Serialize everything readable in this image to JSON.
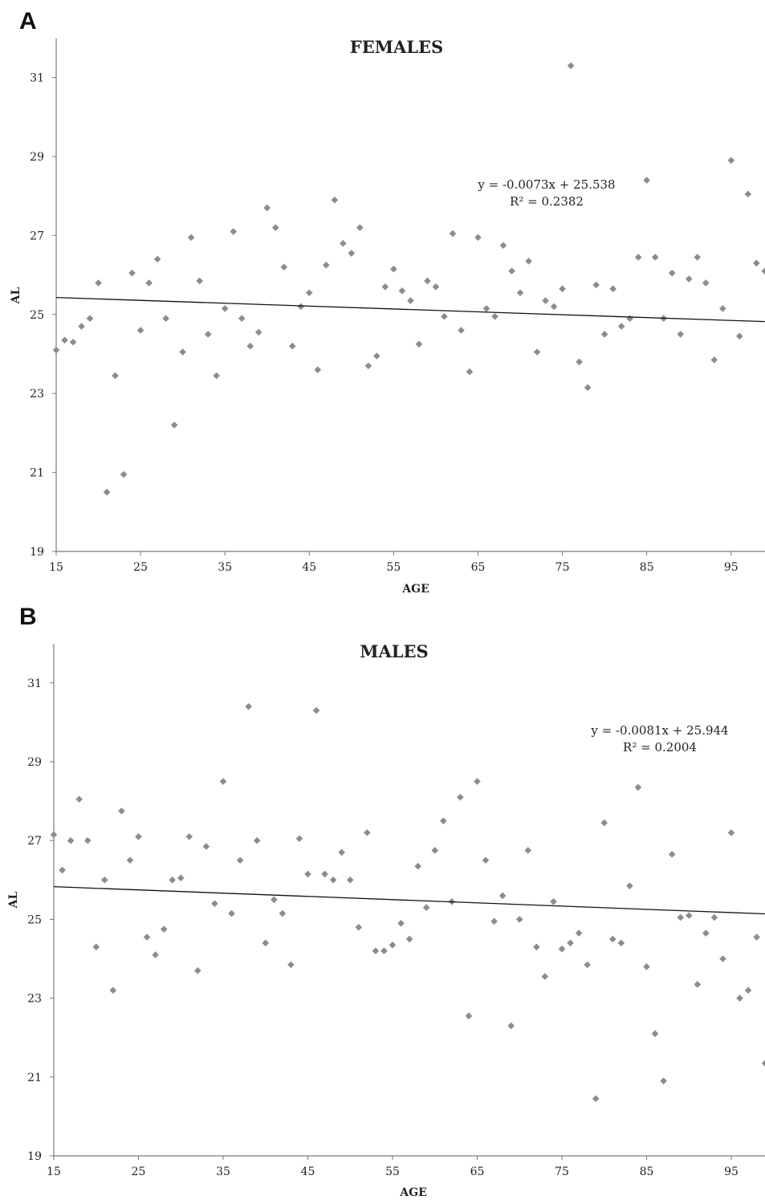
{
  "chart_data": [
    {
      "panel": "A",
      "type": "scatter",
      "title": "FEMALES",
      "xlabel": "AGE",
      "ylabel": "AL",
      "xlim": [
        15,
        99
      ],
      "ylim": [
        19,
        32
      ],
      "xticks": [
        15,
        25,
        35,
        45,
        55,
        65,
        75,
        85,
        95
      ],
      "yticks": [
        19,
        21,
        23,
        25,
        27,
        29,
        31
      ],
      "grid": false,
      "trendline": {
        "equation": "y = -0.0073x + 25.538",
        "r2_label": "R² = 0.2382",
        "y_at_xmin": 25.43,
        "y_at_xmax": 24.82
      },
      "points": [
        [
          15,
          24.1
        ],
        [
          16,
          24.35
        ],
        [
          17,
          24.3
        ],
        [
          18,
          24.7
        ],
        [
          19,
          24.9
        ],
        [
          20,
          25.8
        ],
        [
          21,
          20.5
        ],
        [
          22,
          23.45
        ],
        [
          23,
          20.95
        ],
        [
          24,
          26.05
        ],
        [
          25,
          24.6
        ],
        [
          26,
          25.8
        ],
        [
          27,
          26.4
        ],
        [
          28,
          24.9
        ],
        [
          29,
          22.2
        ],
        [
          30,
          24.05
        ],
        [
          31,
          26.95
        ],
        [
          32,
          25.85
        ],
        [
          33,
          24.5
        ],
        [
          34,
          23.45
        ],
        [
          35,
          25.15
        ],
        [
          36,
          27.1
        ],
        [
          37,
          24.9
        ],
        [
          38,
          24.2
        ],
        [
          39,
          24.55
        ],
        [
          40,
          27.7
        ],
        [
          41,
          27.2
        ],
        [
          42,
          26.2
        ],
        [
          43,
          24.2
        ],
        [
          44,
          25.2
        ],
        [
          45,
          25.55
        ],
        [
          46,
          23.6
        ],
        [
          47,
          26.25
        ],
        [
          48,
          27.9
        ],
        [
          49,
          26.8
        ],
        [
          50,
          26.55
        ],
        [
          51,
          27.2
        ],
        [
          52,
          23.7
        ],
        [
          53,
          23.95
        ],
        [
          54,
          25.7
        ],
        [
          55,
          26.15
        ],
        [
          56,
          25.6
        ],
        [
          57,
          25.35
        ],
        [
          58,
          24.25
        ],
        [
          59,
          25.85
        ],
        [
          60,
          25.7
        ],
        [
          61,
          24.95
        ],
        [
          62,
          27.05
        ],
        [
          63,
          24.6
        ],
        [
          64,
          23.55
        ],
        [
          65,
          26.95
        ],
        [
          66,
          25.15
        ],
        [
          67,
          24.95
        ],
        [
          68,
          26.75
        ],
        [
          69,
          26.1
        ],
        [
          70,
          25.55
        ],
        [
          71,
          26.35
        ],
        [
          72,
          24.05
        ],
        [
          73,
          25.35
        ],
        [
          74,
          25.2
        ],
        [
          75,
          25.65
        ],
        [
          76,
          31.3
        ],
        [
          77,
          23.8
        ],
        [
          78,
          23.15
        ],
        [
          79,
          25.75
        ],
        [
          80,
          24.5
        ],
        [
          81,
          25.65
        ],
        [
          82,
          24.7
        ],
        [
          83,
          24.9
        ],
        [
          84,
          26.45
        ],
        [
          85,
          28.4
        ],
        [
          86,
          26.45
        ],
        [
          87,
          24.9
        ],
        [
          88,
          26.05
        ],
        [
          89,
          24.5
        ],
        [
          90,
          25.9
        ],
        [
          91,
          26.45
        ],
        [
          92,
          25.8
        ],
        [
          93,
          23.85
        ],
        [
          94,
          25.15
        ],
        [
          95,
          28.9
        ],
        [
          96,
          24.45
        ],
        [
          97,
          28.05
        ],
        [
          98,
          26.3
        ],
        [
          99,
          26.1
        ]
      ]
    },
    {
      "panel": "B",
      "type": "scatter",
      "title": "MALES",
      "xlabel": "AGE",
      "ylabel": "AL",
      "xlim": [
        15,
        99
      ],
      "ylim": [
        19,
        32
      ],
      "xticks": [
        15,
        25,
        35,
        45,
        55,
        65,
        75,
        85,
        95
      ],
      "yticks": [
        19,
        21,
        23,
        25,
        27,
        29,
        31
      ],
      "grid": false,
      "trendline": {
        "equation": "y = -0.0081x + 25.944",
        "r2_label": "R² = 0.2004",
        "y_at_xmin": 25.83,
        "y_at_xmax": 25.14
      },
      "points": [
        [
          15,
          27.15
        ],
        [
          16,
          26.25
        ],
        [
          17,
          27.0
        ],
        [
          18,
          28.05
        ],
        [
          19,
          27.0
        ],
        [
          20,
          24.3
        ],
        [
          21,
          26.0
        ],
        [
          22,
          23.2
        ],
        [
          23,
          27.75
        ],
        [
          24,
          26.5
        ],
        [
          25,
          27.1
        ],
        [
          26,
          24.55
        ],
        [
          27,
          24.1
        ],
        [
          28,
          24.75
        ],
        [
          29,
          26.0
        ],
        [
          30,
          26.05
        ],
        [
          31,
          27.1
        ],
        [
          32,
          23.7
        ],
        [
          33,
          26.85
        ],
        [
          34,
          25.4
        ],
        [
          35,
          28.5
        ],
        [
          36,
          25.15
        ],
        [
          37,
          26.5
        ],
        [
          38,
          30.4
        ],
        [
          39,
          27.0
        ],
        [
          40,
          24.4
        ],
        [
          41,
          25.5
        ],
        [
          42,
          25.15
        ],
        [
          43,
          23.85
        ],
        [
          44,
          27.05
        ],
        [
          45,
          26.15
        ],
        [
          46,
          30.3
        ],
        [
          47,
          26.15
        ],
        [
          48,
          26.0
        ],
        [
          49,
          26.7
        ],
        [
          50,
          26.0
        ],
        [
          51,
          24.8
        ],
        [
          52,
          27.2
        ],
        [
          53,
          24.2
        ],
        [
          54,
          24.2
        ],
        [
          55,
          24.35
        ],
        [
          56,
          24.9
        ],
        [
          57,
          24.5
        ],
        [
          58,
          26.35
        ],
        [
          59,
          25.3
        ],
        [
          60,
          26.75
        ],
        [
          61,
          27.5
        ],
        [
          62,
          25.45
        ],
        [
          63,
          28.1
        ],
        [
          64,
          22.55
        ],
        [
          65,
          28.5
        ],
        [
          66,
          26.5
        ],
        [
          67,
          24.95
        ],
        [
          68,
          25.6
        ],
        [
          69,
          22.3
        ],
        [
          70,
          25.0
        ],
        [
          71,
          26.75
        ],
        [
          72,
          24.3
        ],
        [
          73,
          23.55
        ],
        [
          74,
          25.45
        ],
        [
          75,
          24.25
        ],
        [
          76,
          24.4
        ],
        [
          77,
          24.65
        ],
        [
          78,
          23.85
        ],
        [
          79,
          20.45
        ],
        [
          80,
          27.45
        ],
        [
          81,
          24.5
        ],
        [
          82,
          24.4
        ],
        [
          83,
          25.85
        ],
        [
          84,
          28.35
        ],
        [
          85,
          23.8
        ],
        [
          86,
          22.1
        ],
        [
          87,
          20.9
        ],
        [
          88,
          26.65
        ],
        [
          89,
          25.05
        ],
        [
          90,
          25.1
        ],
        [
          91,
          23.35
        ],
        [
          92,
          24.65
        ],
        [
          93,
          25.05
        ],
        [
          94,
          24.0
        ],
        [
          95,
          27.2
        ],
        [
          96,
          23.0
        ],
        [
          97,
          23.2
        ],
        [
          98,
          24.55
        ],
        [
          99,
          21.35
        ]
      ]
    }
  ]
}
